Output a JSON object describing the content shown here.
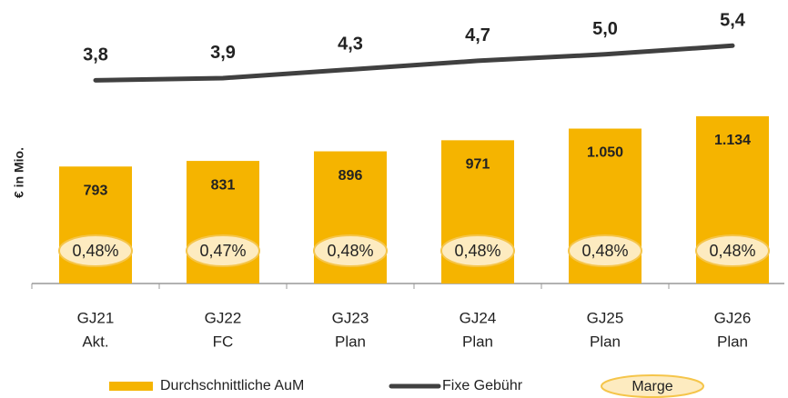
{
  "chart_data": {
    "type": "bar",
    "y_label": "€ in Mio.",
    "categories": [
      [
        "GJ21",
        "Akt."
      ],
      [
        "GJ22",
        "FC"
      ],
      [
        "GJ23",
        "Plan"
      ],
      [
        "GJ24",
        "Plan"
      ],
      [
        "GJ25",
        "Plan"
      ],
      [
        "GJ26",
        "Plan"
      ]
    ],
    "ylim": [
      0,
      1700
    ],
    "y2lim": [
      -5.6,
      6
    ],
    "series": [
      {
        "name": "Durchschnittliche AuM",
        "type": "bar",
        "color": "#f5b400",
        "values": [
          793,
          831,
          896,
          971,
          1050,
          1134
        ],
        "value_labels": [
          "793",
          "831",
          "896",
          "971",
          "1.050",
          "1.134"
        ]
      },
      {
        "name": "Fixe Gebühr",
        "type": "line",
        "axis": "y2",
        "color": "#404040",
        "values": [
          3.8,
          3.9,
          4.3,
          4.7,
          5.0,
          5.4
        ],
        "value_labels": [
          "3,8",
          "3,9",
          "4,3",
          "4,7",
          "5,0",
          "5,4"
        ]
      },
      {
        "name": "Marge",
        "type": "badge",
        "color": "#fdebc0",
        "values": [
          0.48,
          0.47,
          0.48,
          0.48,
          0.48,
          0.48
        ],
        "value_labels": [
          "0,48%",
          "0,47%",
          "0,48%",
          "0,48%",
          "0,48%",
          "0,48%"
        ]
      }
    ]
  }
}
